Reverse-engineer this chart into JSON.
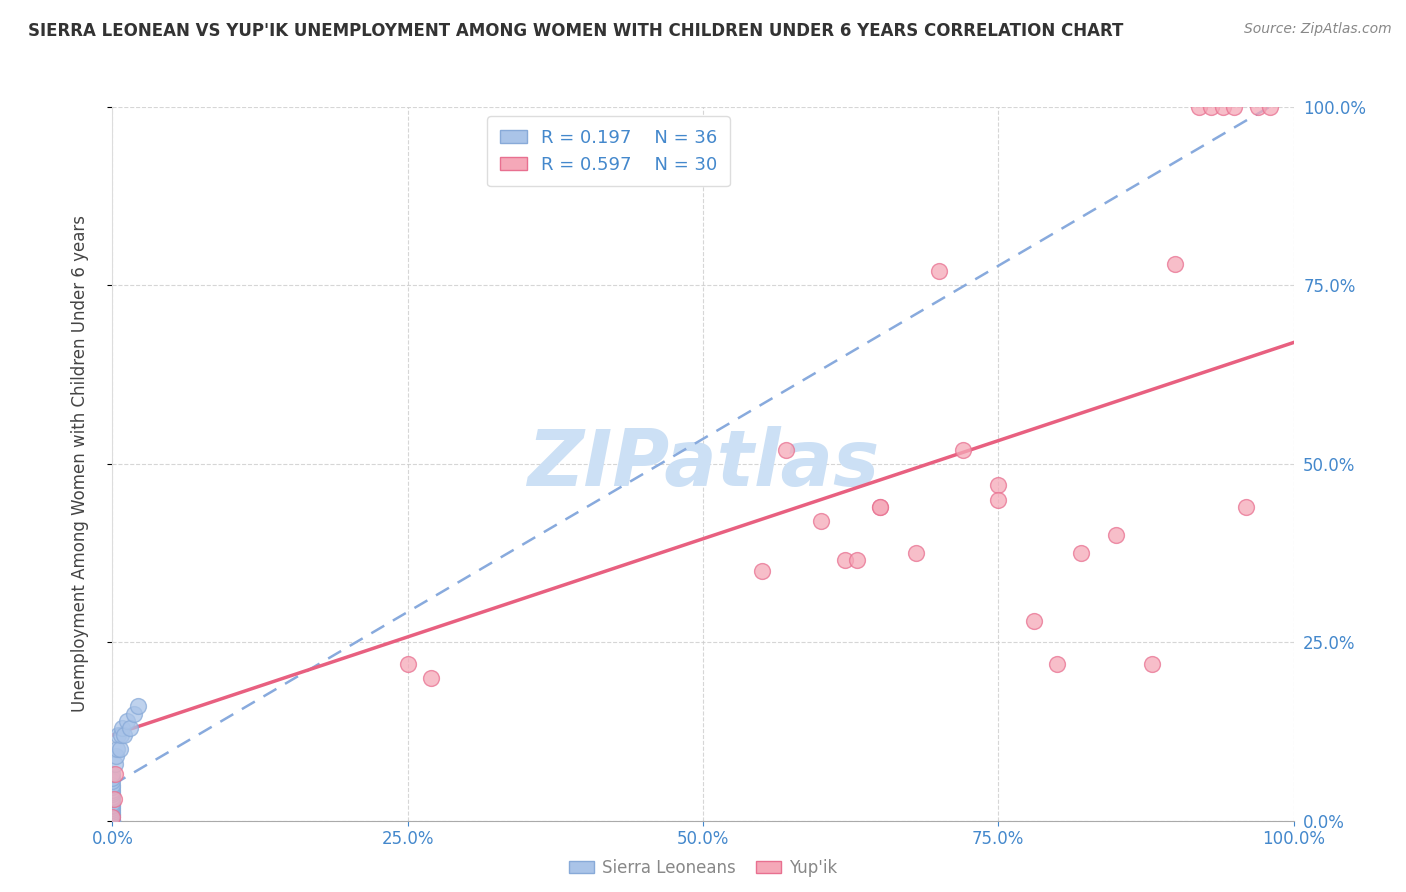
{
  "title": "SIERRA LEONEAN VS YUP'IK UNEMPLOYMENT AMONG WOMEN WITH CHILDREN UNDER 6 YEARS CORRELATION CHART",
  "source": "Source: ZipAtlas.com",
  "ylabel": "Unemployment Among Women with Children Under 6 years",
  "xlim": [
    0,
    1
  ],
  "ylim": [
    0,
    1
  ],
  "xticks": [
    0.0,
    0.25,
    0.5,
    0.75,
    1.0
  ],
  "yticks": [
    0.0,
    0.25,
    0.5,
    0.75,
    1.0
  ],
  "xticklabels": [
    "0.0%",
    "25.0%",
    "50.0%",
    "75.0%",
    "100.0%"
  ],
  "yticklabels_left": [
    "0.0%",
    "25.0%",
    "50.0%",
    "75.0%",
    "100.0%"
  ],
  "yticklabels_right": [
    "0.0%",
    "25.0%",
    "50.0%",
    "75.0%",
    "100.0%"
  ],
  "legend_labels": [
    "Sierra Leoneans",
    "Yup'ik"
  ],
  "legend_R": [
    "0.197",
    "0.597"
  ],
  "legend_N": [
    "36",
    "30"
  ],
  "sierra_color": "#aac4e8",
  "sierra_edge": "#88aad8",
  "yupik_color": "#f5a8b8",
  "yupik_edge": "#e87090",
  "line_sierra_color": "#88aadd",
  "line_yupik_color": "#e86080",
  "watermark_color": "#cce0f5",
  "background_color": "#ffffff",
  "grid_color": "#cccccc",
  "title_color": "#333333",
  "tick_color": "#4488cc",
  "source_color": "#888888",
  "sierra_x": [
    0.0,
    0.0,
    0.0,
    0.0,
    0.0,
    0.0,
    0.0,
    0.0,
    0.0,
    0.0,
    0.0,
    0.0,
    0.0,
    0.0,
    0.0,
    0.0,
    0.0,
    0.0,
    0.0,
    0.0,
    0.0,
    0.0,
    0.0,
    0.0,
    0.002,
    0.003,
    0.004,
    0.005,
    0.006,
    0.007,
    0.008,
    0.01,
    0.012,
    0.015,
    0.018,
    0.022
  ],
  "sierra_y": [
    0.0,
    0.0,
    0.0,
    0.0,
    0.0,
    0.005,
    0.008,
    0.01,
    0.012,
    0.015,
    0.018,
    0.02,
    0.022,
    0.025,
    0.03,
    0.033,
    0.037,
    0.04,
    0.043,
    0.047,
    0.05,
    0.055,
    0.06,
    0.065,
    0.08,
    0.09,
    0.1,
    0.12,
    0.1,
    0.12,
    0.13,
    0.12,
    0.14,
    0.13,
    0.15,
    0.16
  ],
  "yupik_x": [
    0.0,
    0.001,
    0.002,
    0.25,
    0.27,
    0.55,
    0.57,
    0.6,
    0.62,
    0.63,
    0.65,
    0.65,
    0.68,
    0.7,
    0.72,
    0.75,
    0.75,
    0.78,
    0.8,
    0.82,
    0.85,
    0.88,
    0.9,
    0.92,
    0.93,
    0.94,
    0.95,
    0.96,
    0.97,
    0.98
  ],
  "yupik_y": [
    0.005,
    0.03,
    0.065,
    0.22,
    0.2,
    0.35,
    0.52,
    0.42,
    0.365,
    0.365,
    0.44,
    0.44,
    0.375,
    0.77,
    0.52,
    0.47,
    0.45,
    0.28,
    0.22,
    0.375,
    0.4,
    0.22,
    0.78,
    1.0,
    1.0,
    1.0,
    1.0,
    0.44,
    1.0,
    1.0
  ],
  "sierra_trend_x0": 0.0,
  "sierra_trend_y0": 0.05,
  "sierra_trend_x1": 1.0,
  "sierra_trend_y1": 1.02,
  "yupik_trend_x0": 0.0,
  "yupik_trend_y0": 0.12,
  "yupik_trend_x1": 1.0,
  "yupik_trend_y1": 0.67
}
